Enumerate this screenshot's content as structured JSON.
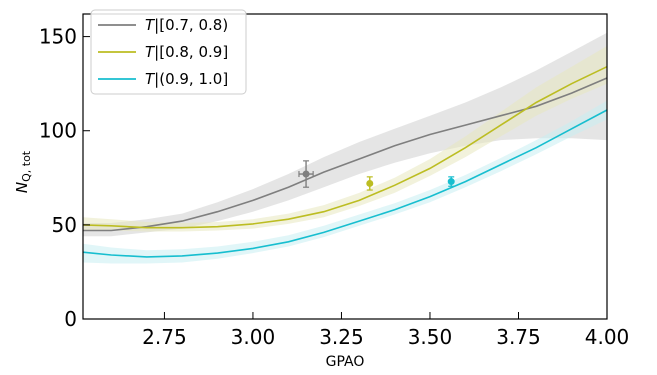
{
  "chart_data": {
    "type": "line",
    "xlabel": "GPAO",
    "ylabel_main": "N",
    "ylabel_sub": "Q, tot",
    "xlim": [
      2.52,
      4.0
    ],
    "ylim": [
      0,
      162
    ],
    "xticks": [
      2.75,
      3.0,
      3.25,
      3.5,
      3.75,
      4.0
    ],
    "xtick_labels": [
      "2.75",
      "3.00",
      "3.25",
      "3.50",
      "3.75",
      "4.00"
    ],
    "yticks": [
      0,
      50,
      100,
      150
    ],
    "ytick_labels": [
      "0",
      "50",
      "100",
      "150"
    ],
    "legend_position": "top-left",
    "series": [
      {
        "name_prefix": "T",
        "name_range": "|[0.7, 0.8)",
        "color": "#7f7f7f",
        "band_color": "#cfcfcf",
        "x": [
          2.52,
          2.6,
          2.7,
          2.8,
          2.9,
          3.0,
          3.1,
          3.2,
          3.3,
          3.4,
          3.5,
          3.6,
          3.7,
          3.8,
          3.9,
          4.0
        ],
        "y": [
          47,
          47,
          49,
          52,
          57,
          63,
          70,
          78,
          85,
          92,
          98,
          103,
          108,
          113,
          120,
          128
        ],
        "lower": [
          44,
          44,
          46,
          48,
          52,
          57,
          63,
          70,
          77,
          83,
          88,
          92,
          95,
          96,
          96,
          95
        ],
        "upper": [
          51,
          51,
          53,
          56,
          62,
          69,
          77,
          86,
          94,
          101,
          108,
          115,
          123,
          132,
          142,
          152
        ],
        "point": {
          "x": 3.15,
          "y": 77,
          "xerr": 0.02,
          "yerr": 7
        }
      },
      {
        "name_prefix": "T",
        "name_range": "|[0.8, 0.9]",
        "color": "#bcbd22",
        "band_color": "#e8e8c0",
        "x": [
          2.52,
          2.6,
          2.7,
          2.8,
          2.9,
          3.0,
          3.1,
          3.2,
          3.3,
          3.4,
          3.5,
          3.6,
          3.7,
          3.8,
          3.9,
          4.0
        ],
        "y": [
          50,
          49.5,
          48.5,
          48.5,
          49,
          50.5,
          53,
          57,
          63,
          71,
          80,
          91,
          103,
          115,
          125,
          134
        ],
        "lower": [
          47,
          47,
          46.5,
          46.5,
          47,
          48,
          50.5,
          54,
          60,
          67,
          76,
          86,
          97,
          108,
          117,
          125
        ],
        "upper": [
          54,
          53,
          51.5,
          51,
          51.5,
          53,
          56,
          60.5,
          67,
          75,
          85,
          97,
          110,
          123,
          134,
          145
        ],
        "point": {
          "x": 3.33,
          "y": 72,
          "xerr": 0.0,
          "yerr": 3.5
        }
      },
      {
        "name_prefix": "T",
        "name_range": "|(0.9, 1.0]",
        "color": "#17becf",
        "band_color": "#c8eef2",
        "x": [
          2.52,
          2.6,
          2.7,
          2.8,
          2.9,
          3.0,
          3.1,
          3.2,
          3.3,
          3.4,
          3.5,
          3.6,
          3.7,
          3.8,
          3.9,
          4.0
        ],
        "y": [
          35.5,
          34,
          33,
          33.5,
          35,
          37.5,
          41,
          46,
          52,
          58,
          65,
          73,
          82,
          91,
          101,
          111
        ],
        "lower": [
          30,
          29.5,
          29.5,
          30,
          32,
          35,
          38.5,
          43.5,
          49.5,
          55.5,
          62,
          70,
          78.5,
          87.5,
          97,
          106
        ],
        "upper": [
          40,
          38,
          36.5,
          37,
          38.5,
          41,
          44.5,
          49.5,
          55.5,
          61.5,
          68.5,
          76.5,
          85.5,
          95,
          105,
          116
        ],
        "point": {
          "x": 3.56,
          "y": 73,
          "xerr": 0.0,
          "yerr": 2.5
        }
      }
    ]
  }
}
